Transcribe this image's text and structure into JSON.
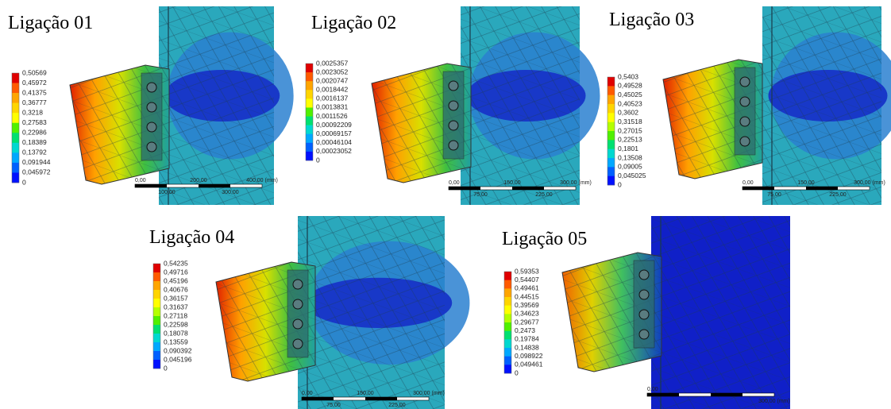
{
  "panels": [
    {
      "title": "Ligação 01",
      "legend": [
        "0,50569",
        "0,45972",
        "0,41375",
        "0,36777",
        "0,3218",
        "0,27583",
        "0,22986",
        "0,18389",
        "0,13792",
        "0,091944",
        "0,045972",
        "0"
      ],
      "scale": [
        "0,00",
        "100,00",
        "200,00",
        "300,00",
        "400,00 (mm)"
      ]
    },
    {
      "title": "Ligação 02",
      "legend": [
        "0,0025357",
        "0,0023052",
        "0,0020747",
        "0,0018442",
        "0,0016137",
        "0,0013831",
        "0,0011526",
        "0,00092209",
        "0,00069157",
        "0,00046104",
        "0,00023052",
        "0"
      ],
      "scale": [
        "0,00",
        "75,00",
        "150,00",
        "225,00",
        "300,00 (mm)"
      ]
    },
    {
      "title": "Ligação 03",
      "legend": [
        "0,5403",
        "0,49528",
        "0,45025",
        "0,40523",
        "0,3602",
        "0,31518",
        "0,27015",
        "0,22513",
        "0,1801",
        "0,13508",
        "0,09005",
        "0,045025",
        "0"
      ],
      "scale": [
        "0,00",
        "75,00",
        "150,00",
        "225,00",
        "300,00 (mm)"
      ]
    },
    {
      "title": "Ligação 04",
      "legend": [
        "0,54235",
        "0,49716",
        "0,45196",
        "0,40676",
        "0,36157",
        "0,31637",
        "0,27118",
        "0,22598",
        "0,18078",
        "0,13559",
        "0,090392",
        "0,045196",
        "0"
      ],
      "scale": [
        "0,00",
        "75,00",
        "150,00",
        "225,00",
        "300,00 (mm)"
      ]
    },
    {
      "title": "Ligação 05",
      "legend": [
        "0,59353",
        "0,54407",
        "0,49461",
        "0,44515",
        "0,39569",
        "0,34623",
        "0,29677",
        "0,2473",
        "0,19784",
        "0,14838",
        "0,098922",
        "0,049461",
        "0"
      ],
      "scale": [
        "0,00",
        "300,00 (mm)"
      ]
    }
  ]
}
